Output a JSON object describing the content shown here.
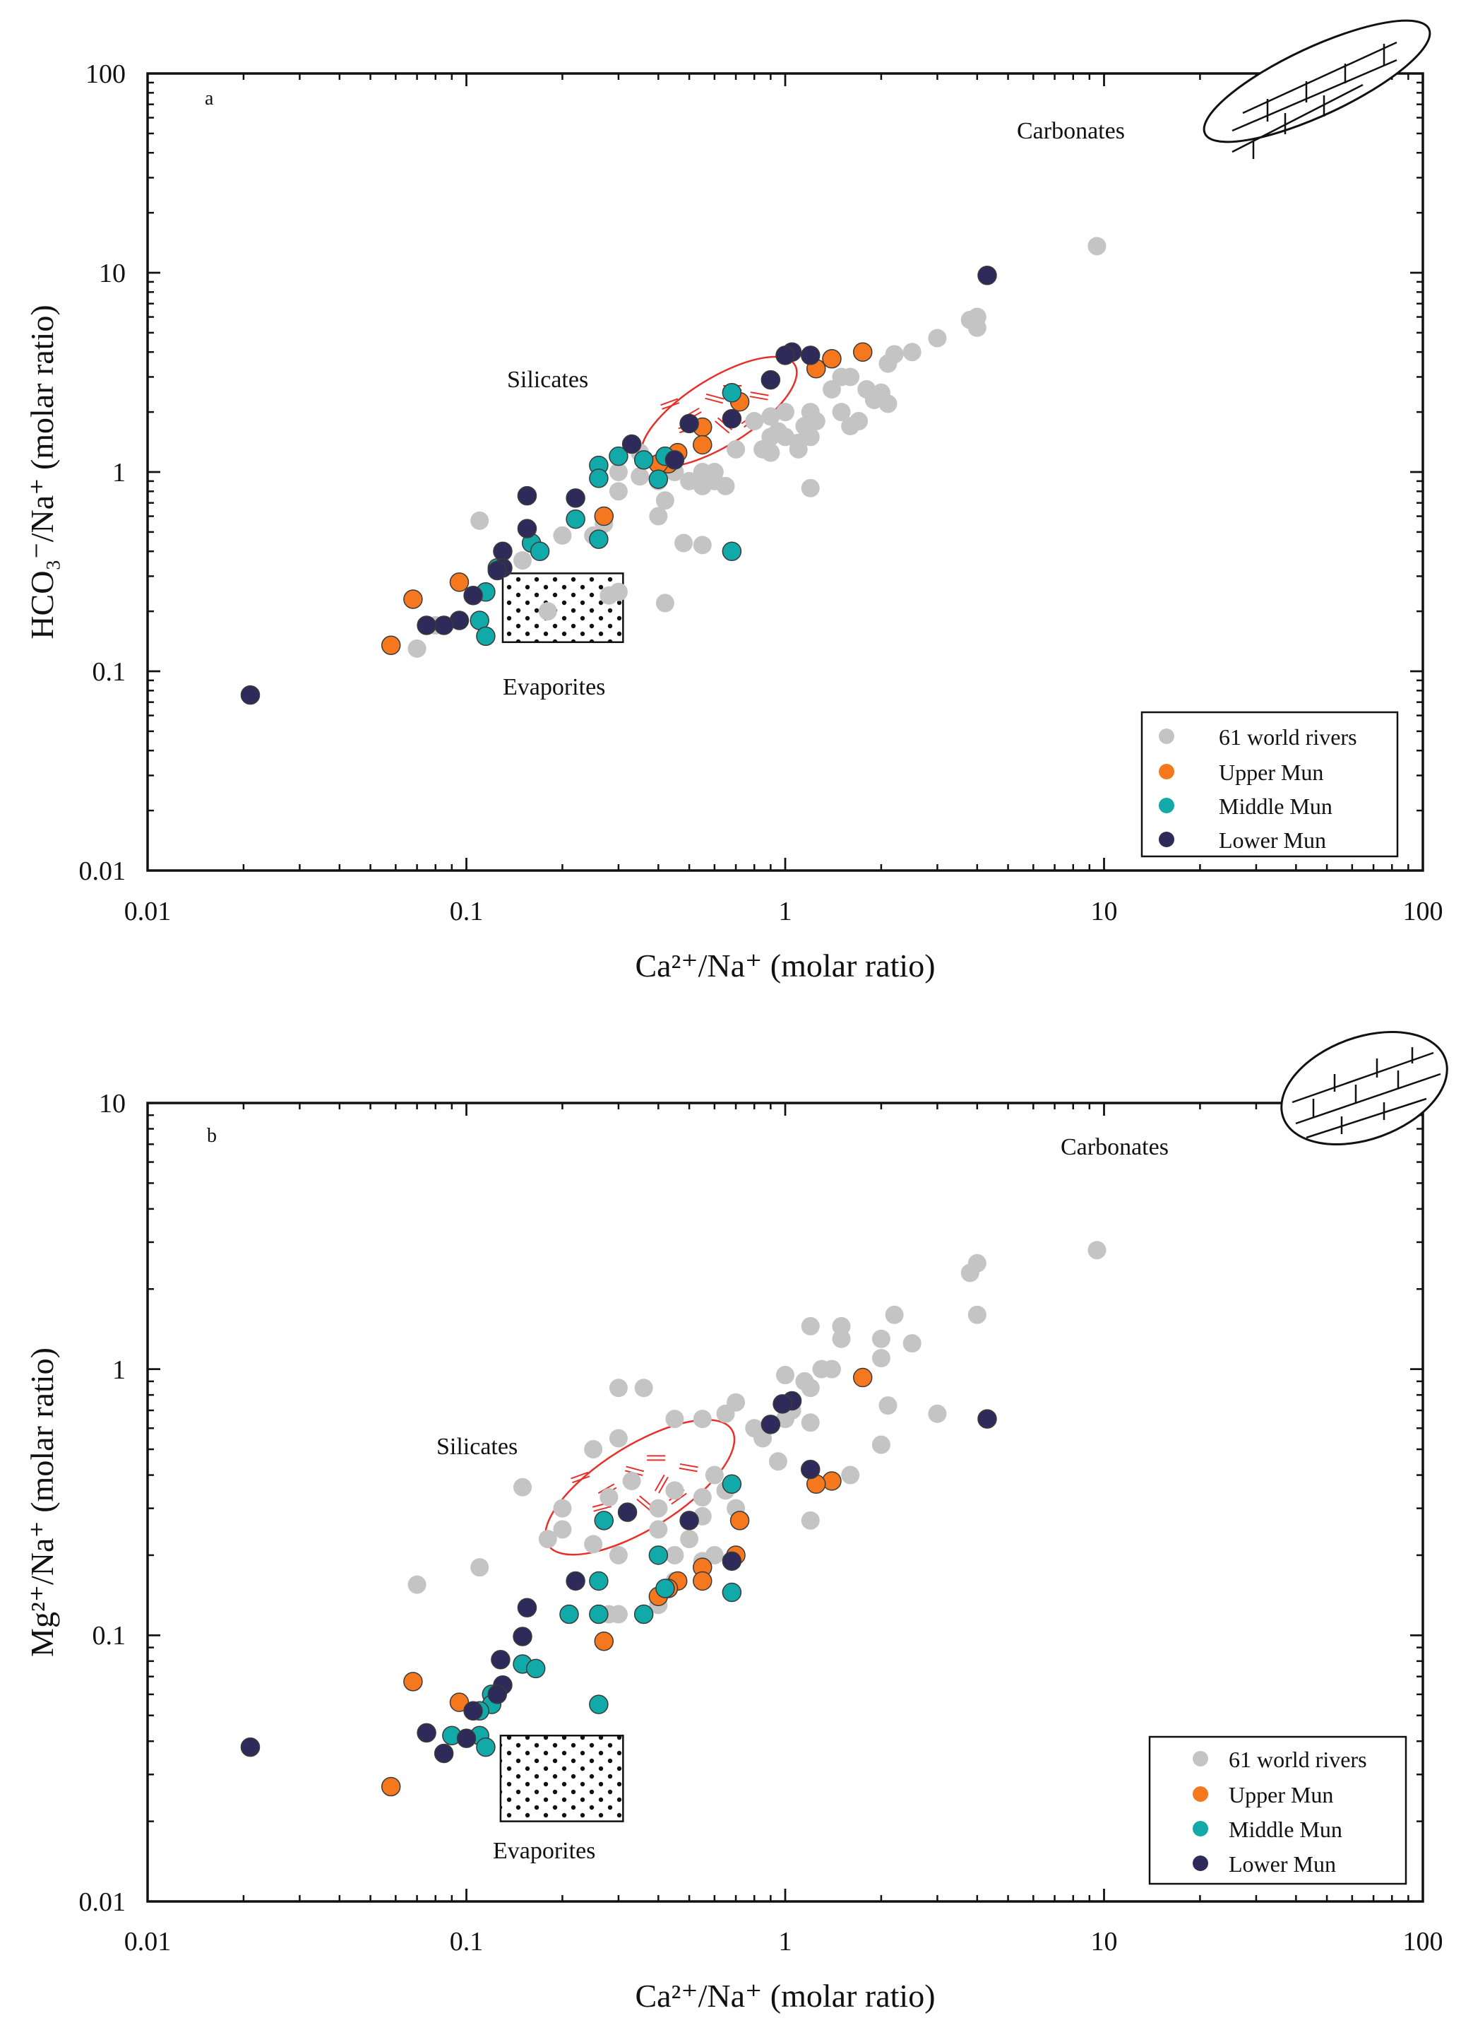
{
  "figure": {
    "colors": {
      "world": "#c4c4c4",
      "upper": "#f5781e",
      "middle": "#12aaa8",
      "lower": "#2e2a5a",
      "silicate": "#e8302a",
      "ink": "#111111"
    }
  },
  "chart_data": [
    {
      "id": "a",
      "type": "scatter",
      "panel_label": "a",
      "x_scale": "log",
      "y_scale": "log",
      "xlim": [
        0.01,
        100
      ],
      "ylim": [
        0.01,
        100
      ],
      "x_ticks": [
        "0.01",
        "0.1",
        "1",
        "10",
        "100"
      ],
      "y_ticks": [
        "0.01",
        "0.1",
        "1",
        "10",
        "100"
      ],
      "xlabel": "Ca²⁺/Na⁺ (molar ratio)",
      "ylabel": "HCO₃⁻/Na⁺ (molar ratio)",
      "annotations": {
        "carbonates": "Carbonates",
        "silicates": "Silicates",
        "evaporites": "Evaporites"
      },
      "regions": {
        "evaporites": {
          "x": [
            0.13,
            0.31
          ],
          "y": [
            0.14,
            0.31
          ]
        },
        "silicates": {
          "cx": 0.62,
          "cy": 2.0,
          "rx_dex": 0.28,
          "ry_dex": 0.28
        }
      },
      "legend": {
        "position": "bottom-right",
        "entries": [
          "61 world rivers",
          "Upper Mun",
          "Middle Mun",
          "Lower Mun"
        ]
      },
      "series": [
        {
          "name": "61 world rivers",
          "key": "world",
          "points": [
            [
              9.5,
              13.6
            ],
            [
              4.0,
              6.0
            ],
            [
              4.0,
              5.3
            ],
            [
              3.8,
              5.8
            ],
            [
              3.0,
              4.7
            ],
            [
              2.5,
              4.0
            ],
            [
              2.2,
              3.9
            ],
            [
              2.1,
              3.5
            ],
            [
              1.8,
              2.6
            ],
            [
              2.0,
              2.5
            ],
            [
              2.1,
              2.2
            ],
            [
              1.9,
              2.3
            ],
            [
              1.6,
              3.0
            ],
            [
              1.5,
              3.0
            ],
            [
              1.4,
              2.6
            ],
            [
              1.5,
              2.0
            ],
            [
              1.7,
              1.8
            ],
            [
              1.6,
              1.7
            ],
            [
              1.25,
              1.8
            ],
            [
              1.2,
              2.0
            ],
            [
              1.15,
              1.7
            ],
            [
              1.2,
              1.5
            ],
            [
              1.0,
              2.0
            ],
            [
              1.0,
              1.5
            ],
            [
              0.95,
              1.6
            ],
            [
              0.9,
              1.9
            ],
            [
              1.1,
              1.4
            ],
            [
              1.1,
              1.3
            ],
            [
              0.9,
              1.25
            ],
            [
              0.85,
              1.3
            ],
            [
              0.9,
              1.5
            ],
            [
              0.8,
              1.8
            ],
            [
              1.2,
              0.83
            ],
            [
              0.7,
              1.3
            ],
            [
              0.6,
              1.0
            ],
            [
              0.6,
              0.9
            ],
            [
              0.55,
              1.0
            ],
            [
              0.55,
              0.85
            ],
            [
              0.65,
              0.85
            ],
            [
              0.5,
              0.9
            ],
            [
              0.45,
              1.0
            ],
            [
              0.4,
              0.9
            ],
            [
              0.42,
              0.72
            ],
            [
              0.4,
              0.6
            ],
            [
              0.35,
              0.95
            ],
            [
              0.3,
              1.0
            ],
            [
              0.3,
              0.8
            ],
            [
              0.35,
              1.25
            ],
            [
              0.27,
              0.55
            ],
            [
              0.25,
              0.48
            ],
            [
              0.2,
              0.48
            ],
            [
              0.48,
              0.44
            ],
            [
              0.55,
              0.43
            ],
            [
              0.42,
              0.22
            ],
            [
              0.3,
              0.25
            ],
            [
              0.28,
              0.24
            ],
            [
              0.18,
              0.2
            ],
            [
              0.15,
              0.36
            ],
            [
              0.11,
              0.57
            ],
            [
              0.07,
              0.13
            ],
            [
              0.08,
              0.17
            ]
          ]
        },
        {
          "name": "Upper Mun",
          "key": "upper",
          "points": [
            [
              1.75,
              4.0
            ],
            [
              1.4,
              3.7
            ],
            [
              1.25,
              3.3
            ],
            [
              0.72,
              2.25
            ],
            [
              0.55,
              1.68
            ],
            [
              0.55,
              1.37
            ],
            [
              0.46,
              1.25
            ],
            [
              0.43,
              1.1
            ],
            [
              0.4,
              1.1
            ],
            [
              0.27,
              0.6
            ],
            [
              0.095,
              0.28
            ],
            [
              0.068,
              0.23
            ],
            [
              0.058,
              0.135
            ]
          ]
        },
        {
          "name": "Middle Mun",
          "key": "middle",
          "points": [
            [
              0.68,
              2.5
            ],
            [
              0.42,
              1.2
            ],
            [
              0.36,
              1.15
            ],
            [
              0.3,
              1.2
            ],
            [
              0.26,
              1.08
            ],
            [
              0.26,
              0.93
            ],
            [
              0.4,
              0.92
            ],
            [
              0.22,
              0.58
            ],
            [
              0.26,
              0.46
            ],
            [
              0.16,
              0.44
            ],
            [
              0.17,
              0.4
            ],
            [
              0.125,
              0.33
            ],
            [
              0.115,
              0.25
            ],
            [
              0.11,
              0.18
            ],
            [
              0.115,
              0.15
            ],
            [
              0.68,
              0.4
            ]
          ]
        },
        {
          "name": "Lower Mun",
          "key": "lower",
          "points": [
            [
              4.3,
              9.7
            ],
            [
              1.05,
              4.0
            ],
            [
              1.0,
              3.85
            ],
            [
              1.2,
              3.85
            ],
            [
              0.9,
              2.9
            ],
            [
              0.68,
              1.85
            ],
            [
              0.5,
              1.75
            ],
            [
              0.45,
              1.15
            ],
            [
              0.33,
              1.38
            ],
            [
              0.22,
              0.74
            ],
            [
              0.155,
              0.76
            ],
            [
              0.155,
              0.52
            ],
            [
              0.13,
              0.4
            ],
            [
              0.13,
              0.33
            ],
            [
              0.125,
              0.32
            ],
            [
              0.105,
              0.24
            ],
            [
              0.095,
              0.18
            ],
            [
              0.085,
              0.17
            ],
            [
              0.075,
              0.17
            ],
            [
              0.021,
              0.076
            ]
          ]
        }
      ]
    },
    {
      "id": "b",
      "type": "scatter",
      "panel_label": "b",
      "x_scale": "log",
      "y_scale": "log",
      "xlim": [
        0.01,
        100
      ],
      "ylim": [
        0.01,
        10
      ],
      "x_ticks": [
        "0.01",
        "0.1",
        "1",
        "10",
        "100"
      ],
      "y_ticks": [
        "0.01",
        "0.1",
        "1",
        "10"
      ],
      "xlabel": "Ca²⁺/Na⁺ (molar ratio)",
      "ylabel": "Mg²⁺/Na⁺ (molar ratio)",
      "annotations": {
        "carbonates": "Carbonates",
        "silicates": "Silicates",
        "evaporites": "Evaporites"
      },
      "regions": {
        "evaporites": {
          "x": [
            0.128,
            0.31
          ],
          "y": [
            0.02,
            0.042
          ]
        },
        "silicates": {
          "cx": 0.35,
          "cy": 0.36,
          "rx_dex": 0.34,
          "ry_dex": 0.26
        }
      },
      "legend": {
        "position": "bottom-right",
        "entries": [
          "61 world rivers",
          "Upper Mun",
          "Middle Mun",
          "Lower Mun"
        ]
      },
      "series": [
        {
          "name": "61 world rivers",
          "key": "world",
          "points": [
            [
              9.5,
              2.8
            ],
            [
              4.0,
              2.5
            ],
            [
              3.8,
              2.3
            ],
            [
              4.0,
              1.6
            ],
            [
              2.2,
              1.6
            ],
            [
              1.5,
              1.45
            ],
            [
              1.2,
              1.45
            ],
            [
              2.0,
              1.3
            ],
            [
              2.5,
              1.25
            ],
            [
              1.5,
              1.3
            ],
            [
              1.3,
              1.0
            ],
            [
              2.0,
              1.1
            ],
            [
              1.0,
              0.95
            ],
            [
              1.2,
              0.85
            ],
            [
              1.15,
              0.9
            ],
            [
              1.4,
              1.0
            ],
            [
              2.1,
              0.73
            ],
            [
              3.0,
              0.68
            ],
            [
              1.05,
              0.7
            ],
            [
              1.0,
              0.65
            ],
            [
              0.7,
              0.75
            ],
            [
              0.8,
              0.6
            ],
            [
              0.85,
              0.55
            ],
            [
              0.65,
              0.68
            ],
            [
              0.55,
              0.65
            ],
            [
              0.45,
              0.65
            ],
            [
              0.36,
              0.85
            ],
            [
              0.3,
              0.85
            ],
            [
              2.0,
              0.52
            ],
            [
              1.2,
              0.63
            ],
            [
              1.6,
              0.4
            ],
            [
              0.95,
              0.45
            ],
            [
              1.2,
              0.27
            ],
            [
              0.6,
              0.4
            ],
            [
              0.55,
              0.33
            ],
            [
              0.45,
              0.35
            ],
            [
              0.4,
              0.3
            ],
            [
              0.3,
              0.55
            ],
            [
              0.25,
              0.5
            ],
            [
              0.33,
              0.38
            ],
            [
              0.28,
              0.33
            ],
            [
              0.2,
              0.3
            ],
            [
              0.2,
              0.25
            ],
            [
              0.18,
              0.23
            ],
            [
              0.15,
              0.36
            ],
            [
              0.25,
              0.22
            ],
            [
              0.3,
              0.2
            ],
            [
              0.4,
              0.25
            ],
            [
              0.5,
              0.23
            ],
            [
              0.55,
              0.19
            ],
            [
              0.45,
              0.2
            ],
            [
              0.45,
              0.16
            ],
            [
              0.3,
              0.12
            ],
            [
              0.28,
              0.12
            ],
            [
              0.11,
              0.18
            ],
            [
              0.07,
              0.155
            ],
            [
              0.4,
              0.13
            ],
            [
              0.6,
              0.2
            ],
            [
              0.55,
              0.28
            ],
            [
              0.7,
              0.3
            ],
            [
              0.65,
              0.35
            ]
          ]
        },
        {
          "name": "Upper Mun",
          "key": "upper",
          "points": [
            [
              1.75,
              0.93
            ],
            [
              1.4,
              0.38
            ],
            [
              1.25,
              0.37
            ],
            [
              0.72,
              0.27
            ],
            [
              0.7,
              0.2
            ],
            [
              0.55,
              0.18
            ],
            [
              0.55,
              0.16
            ],
            [
              0.46,
              0.16
            ],
            [
              0.43,
              0.15
            ],
            [
              0.4,
              0.14
            ],
            [
              0.27,
              0.095
            ],
            [
              0.095,
              0.056
            ],
            [
              0.068,
              0.067
            ],
            [
              0.058,
              0.027
            ]
          ]
        },
        {
          "name": "Middle Mun",
          "key": "middle",
          "points": [
            [
              0.68,
              0.37
            ],
            [
              0.27,
              0.27
            ],
            [
              0.4,
              0.2
            ],
            [
              0.26,
              0.16
            ],
            [
              0.42,
              0.15
            ],
            [
              0.68,
              0.145
            ],
            [
              0.21,
              0.12
            ],
            [
              0.26,
              0.12
            ],
            [
              0.36,
              0.12
            ],
            [
              0.15,
              0.078
            ],
            [
              0.165,
              0.075
            ],
            [
              0.26,
              0.055
            ],
            [
              0.12,
              0.06
            ],
            [
              0.12,
              0.055
            ],
            [
              0.11,
              0.052
            ],
            [
              0.09,
              0.042
            ],
            [
              0.11,
              0.042
            ],
            [
              0.115,
              0.038
            ]
          ]
        },
        {
          "name": "Lower Mun",
          "key": "lower",
          "points": [
            [
              4.3,
              0.65
            ],
            [
              1.05,
              0.76
            ],
            [
              0.98,
              0.74
            ],
            [
              0.9,
              0.62
            ],
            [
              1.2,
              0.42
            ],
            [
              0.32,
              0.29
            ],
            [
              0.5,
              0.27
            ],
            [
              0.68,
              0.19
            ],
            [
              0.22,
              0.16
            ],
            [
              0.155,
              0.127
            ],
            [
              0.15,
              0.099
            ],
            [
              0.128,
              0.081
            ],
            [
              0.13,
              0.065
            ],
            [
              0.125,
              0.06
            ],
            [
              0.105,
              0.052
            ],
            [
              0.075,
              0.043
            ],
            [
              0.1,
              0.041
            ],
            [
              0.085,
              0.036
            ],
            [
              0.021,
              0.038
            ]
          ]
        }
      ]
    }
  ]
}
